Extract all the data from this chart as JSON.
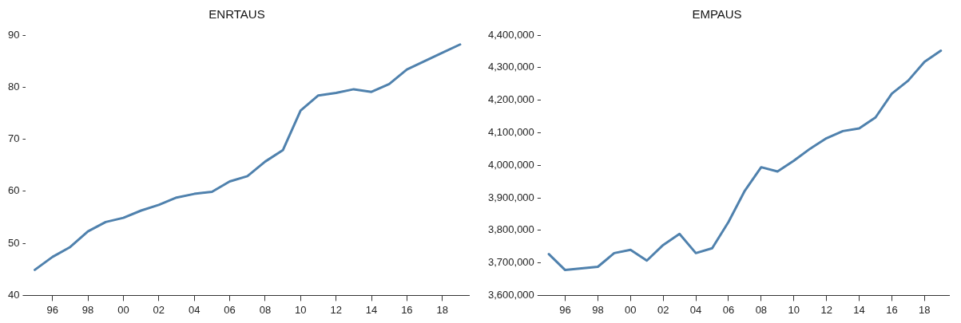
{
  "chart_data": [
    {
      "type": "line",
      "title": "ENRTAUS",
      "x": [
        1995,
        1996,
        1997,
        1998,
        1999,
        2000,
        2001,
        2002,
        2003,
        2004,
        2005,
        2006,
        2007,
        2008,
        2009,
        2010,
        2011,
        2012,
        2013,
        2014,
        2015,
        2016,
        2017,
        2018,
        2019
      ],
      "series": [
        {
          "color": "#4f81ad",
          "values": [
            44.9,
            47.4,
            49.3,
            52.3,
            54.1,
            54.9,
            56.3,
            57.4,
            58.8,
            59.5,
            59.9,
            61.9,
            62.9,
            65.7,
            67.9,
            75.5,
            78.4,
            78.9,
            79.6,
            79.1,
            80.6,
            83.4,
            85.0,
            86.6,
            88.2
          ]
        }
      ],
      "xlim": [
        1994.5,
        2019.5
      ],
      "xticks": [
        {
          "value": 1996,
          "label": "96"
        },
        {
          "value": 1998,
          "label": "98"
        },
        {
          "value": 2000,
          "label": "00"
        },
        {
          "value": 2002,
          "label": "02"
        },
        {
          "value": 2004,
          "label": "04"
        },
        {
          "value": 2006,
          "label": "06"
        },
        {
          "value": 2008,
          "label": "08"
        },
        {
          "value": 2010,
          "label": "10"
        },
        {
          "value": 2012,
          "label": "12"
        },
        {
          "value": 2014,
          "label": "14"
        },
        {
          "value": 2016,
          "label": "16"
        },
        {
          "value": 2018,
          "label": "18"
        }
      ],
      "ylim": [
        40,
        90
      ],
      "yticks": [
        40,
        50,
        60,
        70,
        80,
        90
      ],
      "grid": false,
      "legend": false,
      "marker": "none",
      "line_style": "solid"
    },
    {
      "type": "line",
      "title": "EMPAUS",
      "x": [
        1995,
        1996,
        1997,
        1998,
        1999,
        2000,
        2001,
        2002,
        2003,
        2004,
        2005,
        2006,
        2007,
        2008,
        2009,
        2010,
        2011,
        2012,
        2013,
        2014,
        2015,
        2016,
        2017,
        2018,
        2019
      ],
      "series": [
        {
          "color": "#4f81ad",
          "values": [
            3727000,
            3678000,
            3683000,
            3688000,
            3730000,
            3740000,
            3707000,
            3755000,
            3789000,
            3730000,
            3745000,
            3826000,
            3922000,
            3994000,
            3981000,
            4014000,
            4051000,
            4083000,
            4105000,
            4113000,
            4147000,
            4220000,
            4260000,
            4318000,
            4352000
          ]
        }
      ],
      "xlim": [
        1994.5,
        2019.5
      ],
      "xticks": [
        {
          "value": 1996,
          "label": "96"
        },
        {
          "value": 1998,
          "label": "98"
        },
        {
          "value": 2000,
          "label": "00"
        },
        {
          "value": 2002,
          "label": "02"
        },
        {
          "value": 2004,
          "label": "04"
        },
        {
          "value": 2006,
          "label": "06"
        },
        {
          "value": 2008,
          "label": "08"
        },
        {
          "value": 2010,
          "label": "10"
        },
        {
          "value": 2012,
          "label": "12"
        },
        {
          "value": 2014,
          "label": "14"
        },
        {
          "value": 2016,
          "label": "16"
        },
        {
          "value": 2018,
          "label": "18"
        }
      ],
      "ylim": [
        3600000,
        4400000
      ],
      "yticks": [
        {
          "value": 3600000,
          "label": "3,600,000"
        },
        {
          "value": 3700000,
          "label": "3,700,000"
        },
        {
          "value": 3800000,
          "label": "3,800,000"
        },
        {
          "value": 3900000,
          "label": "3,900,000"
        },
        {
          "value": 4000000,
          "label": "4,000,000"
        },
        {
          "value": 4100000,
          "label": "4,100,000"
        },
        {
          "value": 4200000,
          "label": "4,200,000"
        },
        {
          "value": 4300000,
          "label": "4,300,000"
        },
        {
          "value": 4400000,
          "label": "4,400,000"
        }
      ],
      "grid": false,
      "legend": false,
      "marker": "none",
      "line_style": "solid"
    }
  ]
}
